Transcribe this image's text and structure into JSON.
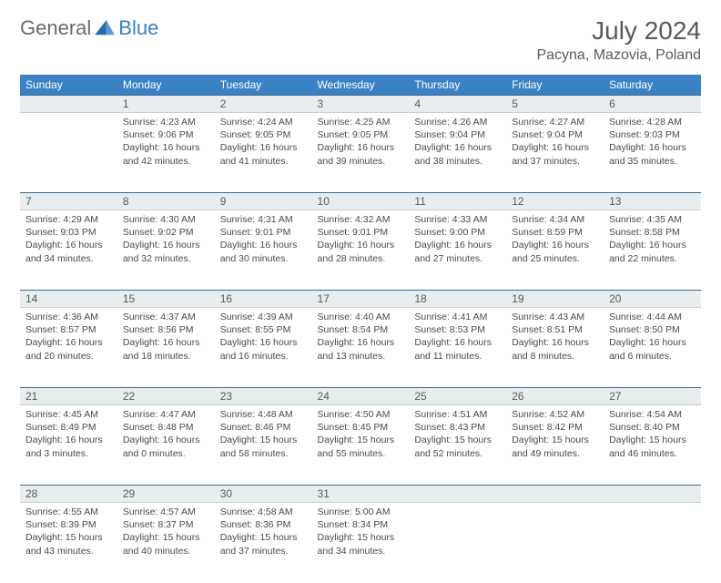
{
  "logo": {
    "text1": "General",
    "text2": "Blue"
  },
  "title": "July 2024",
  "location": "Pacyna, Mazovia, Poland",
  "header_bg": "#3b82c4",
  "header_text": "#ffffff",
  "daynum_bg": "#e8edf0",
  "daynum_border_top": "#3b6a8f",
  "day_headers": [
    "Sunday",
    "Monday",
    "Tuesday",
    "Wednesday",
    "Thursday",
    "Friday",
    "Saturday"
  ],
  "weeks": [
    {
      "nums": [
        "",
        "1",
        "2",
        "3",
        "4",
        "5",
        "6"
      ],
      "cells": [
        null,
        {
          "sunrise": "4:23 AM",
          "sunset": "9:06 PM",
          "daylight": "16 hours and 42 minutes."
        },
        {
          "sunrise": "4:24 AM",
          "sunset": "9:05 PM",
          "daylight": "16 hours and 41 minutes."
        },
        {
          "sunrise": "4:25 AM",
          "sunset": "9:05 PM",
          "daylight": "16 hours and 39 minutes."
        },
        {
          "sunrise": "4:26 AM",
          "sunset": "9:04 PM",
          "daylight": "16 hours and 38 minutes."
        },
        {
          "sunrise": "4:27 AM",
          "sunset": "9:04 PM",
          "daylight": "16 hours and 37 minutes."
        },
        {
          "sunrise": "4:28 AM",
          "sunset": "9:03 PM",
          "daylight": "16 hours and 35 minutes."
        }
      ]
    },
    {
      "nums": [
        "7",
        "8",
        "9",
        "10",
        "11",
        "12",
        "13"
      ],
      "cells": [
        {
          "sunrise": "4:29 AM",
          "sunset": "9:03 PM",
          "daylight": "16 hours and 34 minutes."
        },
        {
          "sunrise": "4:30 AM",
          "sunset": "9:02 PM",
          "daylight": "16 hours and 32 minutes."
        },
        {
          "sunrise": "4:31 AM",
          "sunset": "9:01 PM",
          "daylight": "16 hours and 30 minutes."
        },
        {
          "sunrise": "4:32 AM",
          "sunset": "9:01 PM",
          "daylight": "16 hours and 28 minutes."
        },
        {
          "sunrise": "4:33 AM",
          "sunset": "9:00 PM",
          "daylight": "16 hours and 27 minutes."
        },
        {
          "sunrise": "4:34 AM",
          "sunset": "8:59 PM",
          "daylight": "16 hours and 25 minutes."
        },
        {
          "sunrise": "4:35 AM",
          "sunset": "8:58 PM",
          "daylight": "16 hours and 22 minutes."
        }
      ]
    },
    {
      "nums": [
        "14",
        "15",
        "16",
        "17",
        "18",
        "19",
        "20"
      ],
      "cells": [
        {
          "sunrise": "4:36 AM",
          "sunset": "8:57 PM",
          "daylight": "16 hours and 20 minutes."
        },
        {
          "sunrise": "4:37 AM",
          "sunset": "8:56 PM",
          "daylight": "16 hours and 18 minutes."
        },
        {
          "sunrise": "4:39 AM",
          "sunset": "8:55 PM",
          "daylight": "16 hours and 16 minutes."
        },
        {
          "sunrise": "4:40 AM",
          "sunset": "8:54 PM",
          "daylight": "16 hours and 13 minutes."
        },
        {
          "sunrise": "4:41 AM",
          "sunset": "8:53 PM",
          "daylight": "16 hours and 11 minutes."
        },
        {
          "sunrise": "4:43 AM",
          "sunset": "8:51 PM",
          "daylight": "16 hours and 8 minutes."
        },
        {
          "sunrise": "4:44 AM",
          "sunset": "8:50 PM",
          "daylight": "16 hours and 6 minutes."
        }
      ]
    },
    {
      "nums": [
        "21",
        "22",
        "23",
        "24",
        "25",
        "26",
        "27"
      ],
      "cells": [
        {
          "sunrise": "4:45 AM",
          "sunset": "8:49 PM",
          "daylight": "16 hours and 3 minutes."
        },
        {
          "sunrise": "4:47 AM",
          "sunset": "8:48 PM",
          "daylight": "16 hours and 0 minutes."
        },
        {
          "sunrise": "4:48 AM",
          "sunset": "8:46 PM",
          "daylight": "15 hours and 58 minutes."
        },
        {
          "sunrise": "4:50 AM",
          "sunset": "8:45 PM",
          "daylight": "15 hours and 55 minutes."
        },
        {
          "sunrise": "4:51 AM",
          "sunset": "8:43 PM",
          "daylight": "15 hours and 52 minutes."
        },
        {
          "sunrise": "4:52 AM",
          "sunset": "8:42 PM",
          "daylight": "15 hours and 49 minutes."
        },
        {
          "sunrise": "4:54 AM",
          "sunset": "8:40 PM",
          "daylight": "15 hours and 46 minutes."
        }
      ]
    },
    {
      "nums": [
        "28",
        "29",
        "30",
        "31",
        "",
        "",
        ""
      ],
      "cells": [
        {
          "sunrise": "4:55 AM",
          "sunset": "8:39 PM",
          "daylight": "15 hours and 43 minutes."
        },
        {
          "sunrise": "4:57 AM",
          "sunset": "8:37 PM",
          "daylight": "15 hours and 40 minutes."
        },
        {
          "sunrise": "4:58 AM",
          "sunset": "8:36 PM",
          "daylight": "15 hours and 37 minutes."
        },
        {
          "sunrise": "5:00 AM",
          "sunset": "8:34 PM",
          "daylight": "15 hours and 34 minutes."
        },
        null,
        null,
        null
      ]
    }
  ],
  "labels": {
    "sunrise": "Sunrise:",
    "sunset": "Sunset:",
    "daylight": "Daylight:"
  }
}
